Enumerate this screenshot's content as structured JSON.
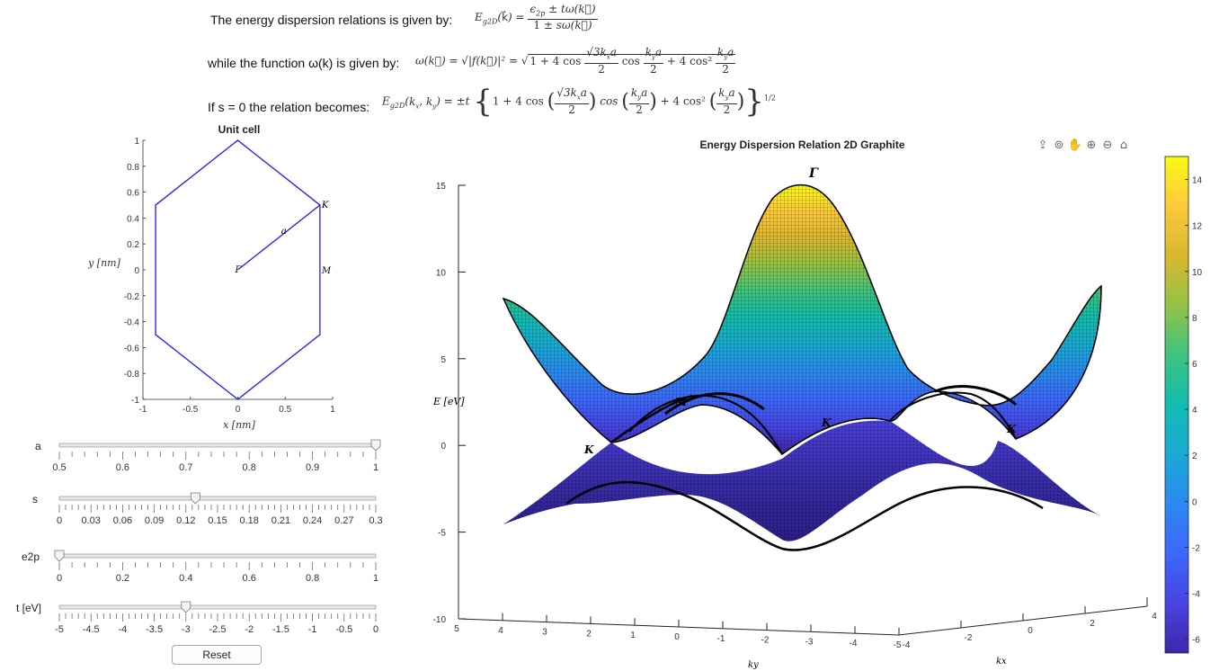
{
  "equations": {
    "line1_label": "The energy dispersion relations is given by:",
    "line2_label": "while the function ω(k) is given by:",
    "line3_label": "If s = 0 the relation becomes:"
  },
  "unit_cell": {
    "title": "Unit cell",
    "xlabel": "x [nm]",
    "ylabel": "y [nm]",
    "x_ticks": [
      "-1",
      "-0.5",
      "0",
      "0.5",
      "1"
    ],
    "y_ticks": [
      "1",
      "0.8",
      "0.6",
      "0.4",
      "0.2",
      "0",
      "-0.2",
      "-0.4",
      "-0.6",
      "-0.8",
      "-1"
    ],
    "point_labels": {
      "K": "K",
      "M": "M",
      "gamma": "Γ",
      "a": "a"
    },
    "hexagon_color": "#1a1aff"
  },
  "controls": {
    "a": {
      "label": "a",
      "min": 0.5,
      "max": 1,
      "value": 1,
      "ticks": [
        "0.5",
        "0.6",
        "0.7",
        "0.8",
        "0.9",
        "1"
      ]
    },
    "s": {
      "label": "s",
      "min": 0,
      "max": 0.3,
      "value": 0.129,
      "ticks": [
        "0",
        "0.03",
        "0.06",
        "0.09",
        "0.12",
        "0.15",
        "0.18",
        "0.21",
        "0.24",
        "0.27",
        "0.3"
      ]
    },
    "e2p": {
      "label": "e2p",
      "min": 0,
      "max": 1,
      "value": 0,
      "ticks": [
        "0",
        "0.2",
        "0.4",
        "0.6",
        "0.8",
        "1"
      ]
    },
    "t": {
      "label": "t [eV]",
      "min": -5,
      "max": 0,
      "value": -3,
      "ticks": [
        "-5",
        "-4.5",
        "-4",
        "-3.5",
        "-3",
        "-2.5",
        "-2",
        "-1.5",
        "-1",
        "-0.5",
        "0"
      ]
    },
    "reset_label": "Reset"
  },
  "plot3d": {
    "title": "Energy Dispersion Relation 2D Graphite",
    "zlabel": "E [eV]",
    "xlabel": "kx",
    "ylabel": "ky",
    "z_ticks": [
      "15",
      "10",
      "5",
      "0",
      "-5",
      "-10"
    ],
    "ky_ticks": [
      "5",
      "4",
      "3",
      "2",
      "1",
      "0",
      "-1",
      "-2",
      "-3",
      "-4",
      "-5"
    ],
    "kx_ticks": [
      "-4",
      "-2",
      "0",
      "2",
      "4"
    ],
    "point_labels": {
      "gamma": "Γ",
      "M": "M",
      "K": "K"
    },
    "toolbar_icons": [
      "export-icon",
      "rotate-icon",
      "pan-icon",
      "zoom-in-icon",
      "zoom-out-icon",
      "home-icon"
    ]
  },
  "colorbar": {
    "ticks": [
      "14",
      "12",
      "10",
      "8",
      "6",
      "4",
      "2",
      "0",
      "-2",
      "-4",
      "-6"
    ],
    "min": -6.6,
    "max": 15,
    "colors": [
      "#3e26a8",
      "#4744e3",
      "#3d67fa",
      "#2a89f0",
      "#1aa9d4",
      "#12bcb0",
      "#3bc380",
      "#94c345",
      "#d8b82f",
      "#fcc93b",
      "#f9fb14"
    ]
  }
}
